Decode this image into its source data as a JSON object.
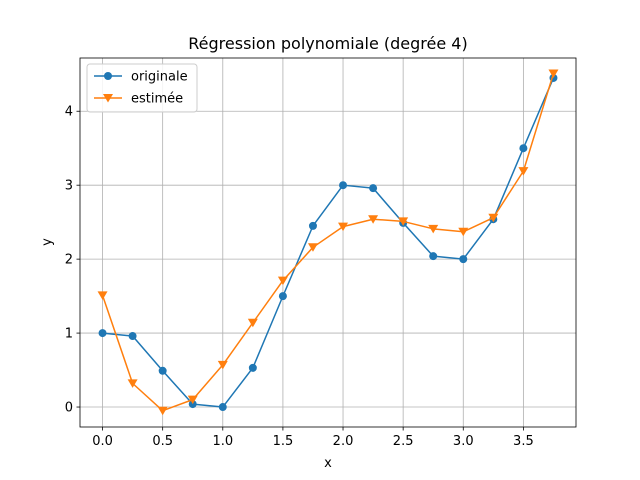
{
  "chart_data": {
    "type": "line",
    "title": "Régression polynomiale (degrée 4)",
    "xlabel": "x",
    "ylabel": "y",
    "xlim": [
      -0.1875,
      3.9375
    ],
    "ylim": [
      -0.27,
      4.72
    ],
    "xticks": [
      0.0,
      0.5,
      1.0,
      1.5,
      2.0,
      2.5,
      3.0,
      3.5
    ],
    "xtick_labels": [
      "0.0",
      "0.5",
      "1.0",
      "1.5",
      "2.0",
      "2.5",
      "3.0",
      "3.5"
    ],
    "yticks": [
      0,
      1,
      2,
      3,
      4
    ],
    "ytick_labels": [
      "0",
      "1",
      "2",
      "3",
      "4"
    ],
    "grid": true,
    "legend_position": "top-left",
    "x": [
      0.0,
      0.25,
      0.5,
      0.75,
      1.0,
      1.25,
      1.5,
      1.75,
      2.0,
      2.25,
      2.5,
      2.75,
      3.0,
      3.25,
      3.5,
      3.75
    ],
    "series": [
      {
        "name": "originale",
        "color": "#1f77b4",
        "marker": "circle",
        "values": [
          1.0,
          0.96,
          0.49,
          0.04,
          0.0,
          0.53,
          1.5,
          2.45,
          3.0,
          2.96,
          2.49,
          2.04,
          2.0,
          2.54,
          3.5,
          4.45
        ]
      },
      {
        "name": "estimée",
        "color": "#ff7f0e",
        "marker": "triangle-down",
        "values": [
          1.51,
          0.32,
          -0.05,
          0.1,
          0.57,
          1.14,
          1.71,
          2.16,
          2.44,
          2.54,
          2.51,
          2.41,
          2.37,
          2.56,
          3.19,
          4.51
        ]
      }
    ]
  }
}
